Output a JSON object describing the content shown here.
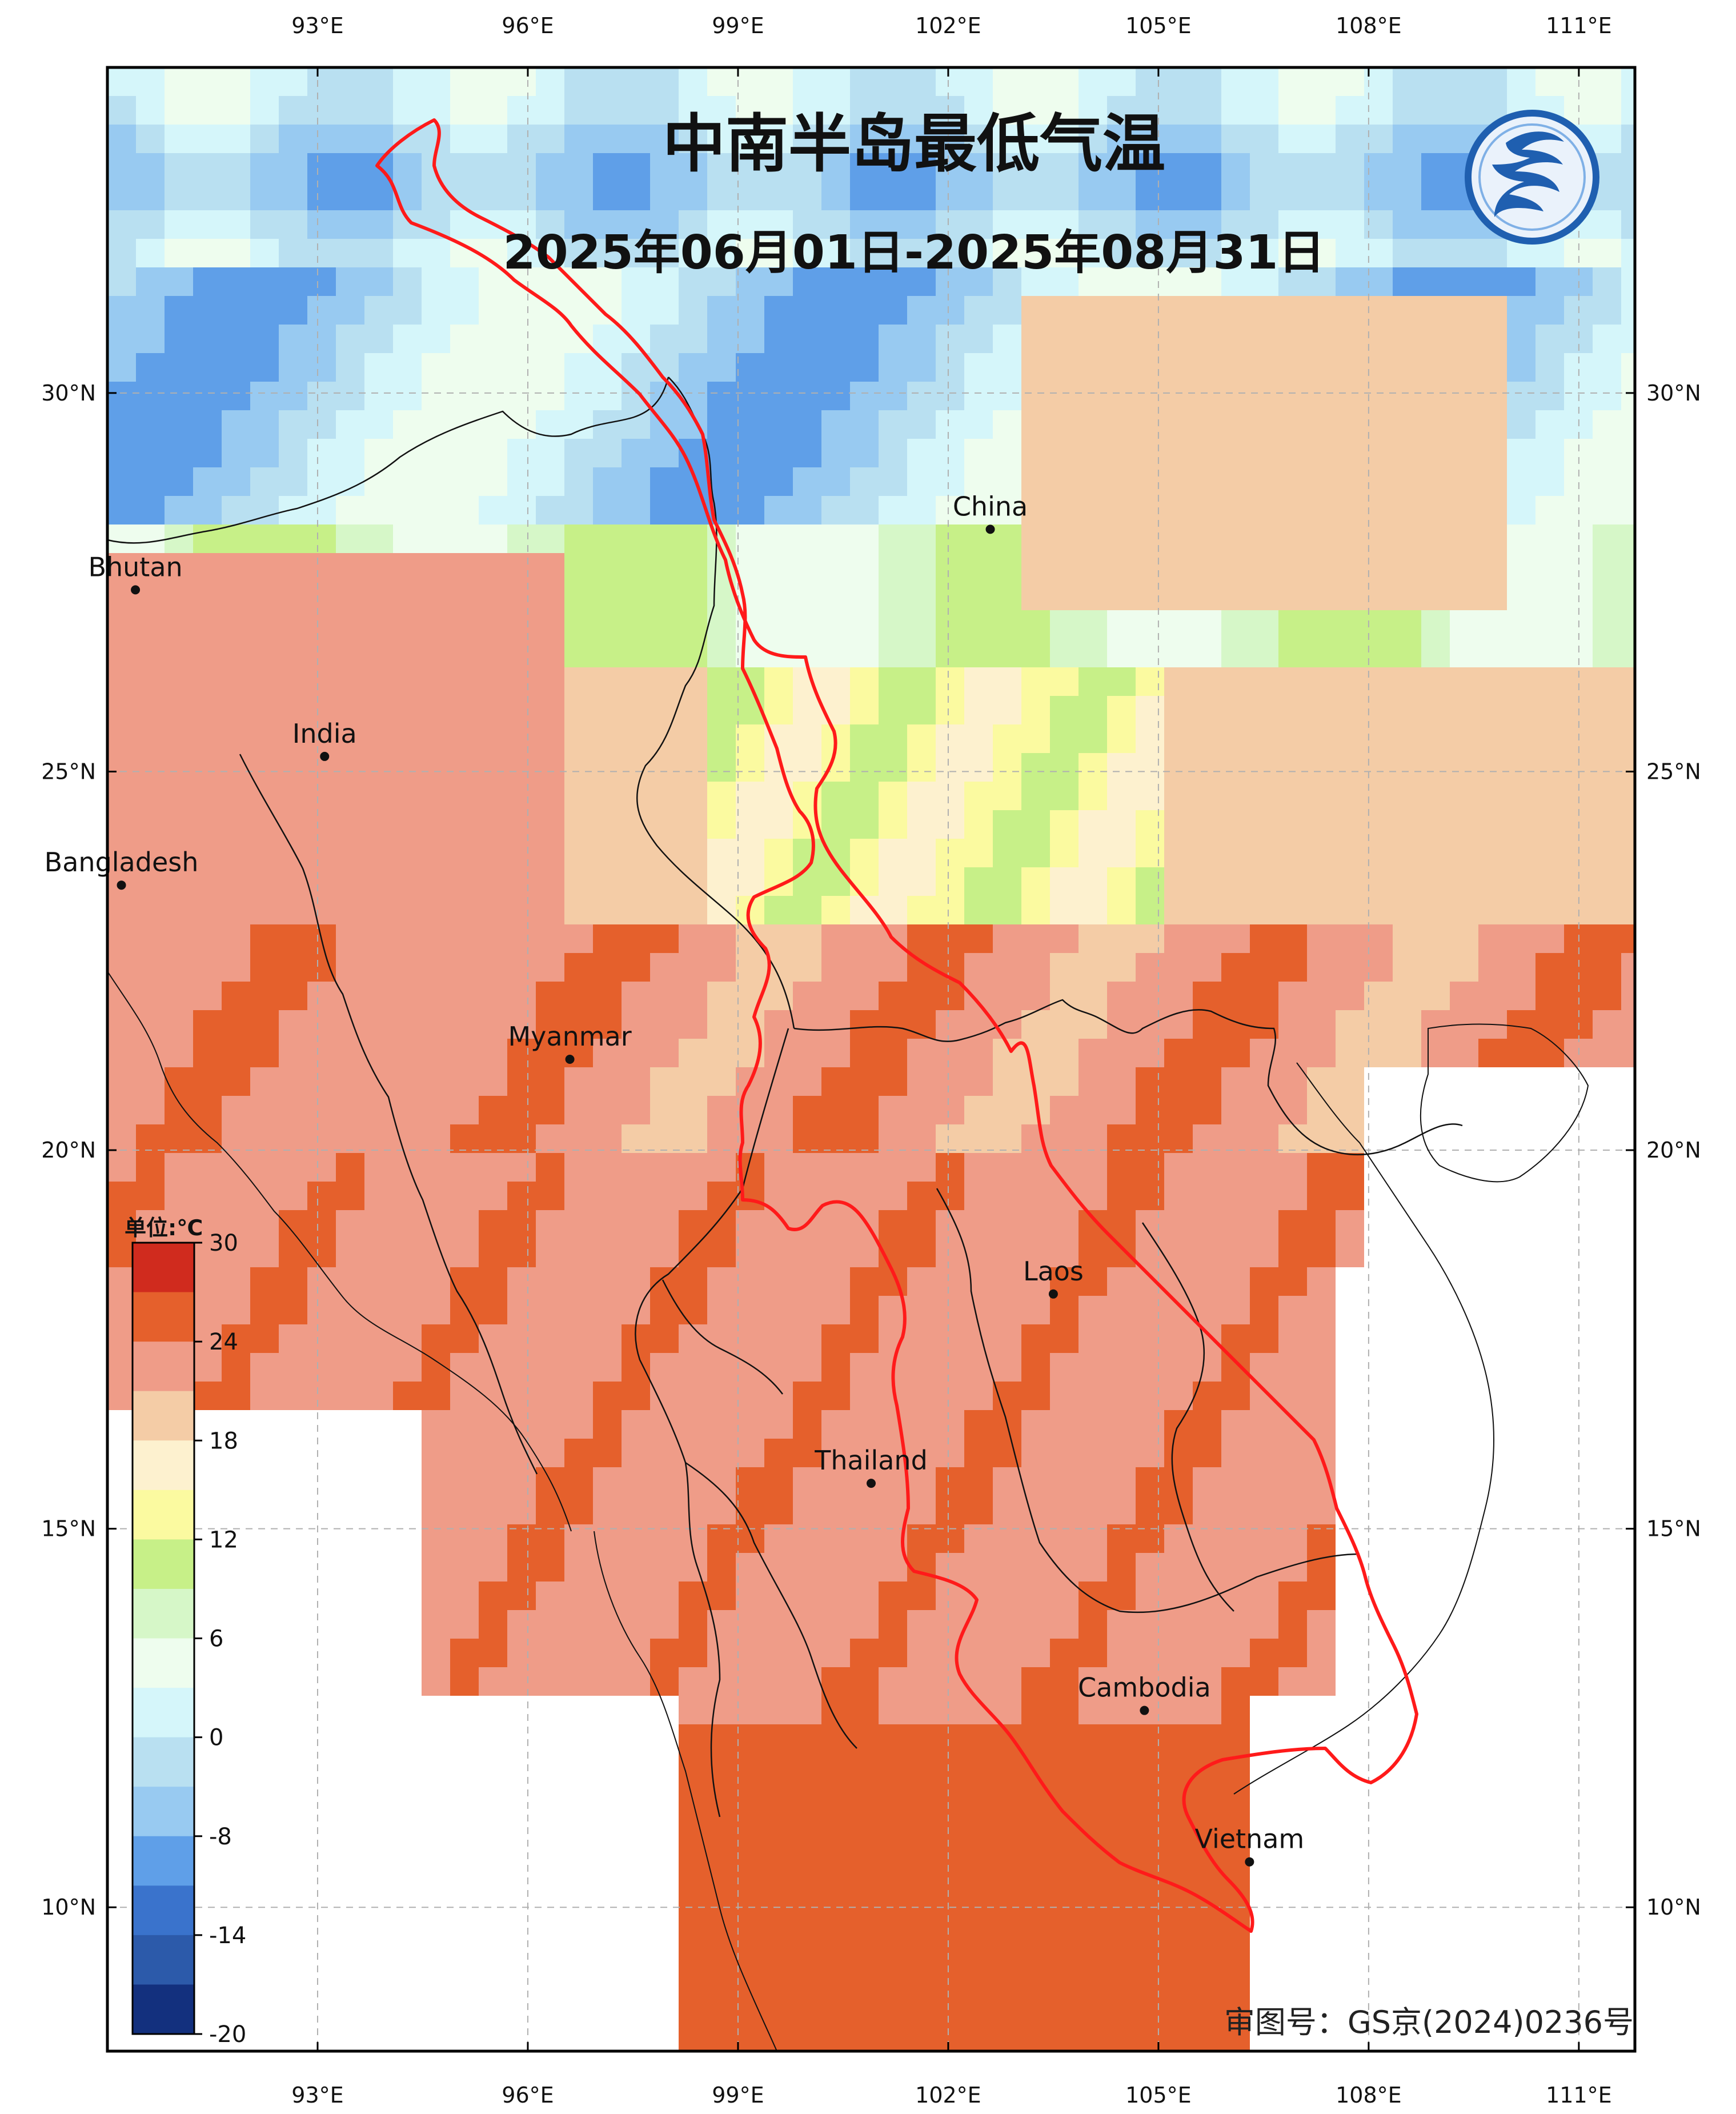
{
  "title": "中南半岛最低气温",
  "subtitle": "2025年06月01日-2025年08月31日",
  "approval_number": "审图号：GS京(2024)0236号",
  "logo": {
    "icon": "weather-service-dragon-logo",
    "color": "#1f5fb0"
  },
  "axes": {
    "lon_ticks": [
      "93°E",
      "96°E",
      "99°E",
      "102°E",
      "105°E",
      "108°E",
      "111°E"
    ],
    "lat_ticks": [
      "30°N",
      "25°N",
      "20°N",
      "15°N",
      "10°N"
    ]
  },
  "places": [
    {
      "name": "China",
      "lon": 102.6,
      "lat": 28.2
    },
    {
      "name": "Bhutan",
      "lon": 90.4,
      "lat": 27.4
    },
    {
      "name": "India",
      "lon": 93.1,
      "lat": 25.2
    },
    {
      "name": "Bangladesh",
      "lon": 90.2,
      "lat": 23.5
    },
    {
      "name": "Myanmar",
      "lon": 96.6,
      "lat": 21.2
    },
    {
      "name": "Laos",
      "lon": 103.5,
      "lat": 18.1
    },
    {
      "name": "Thailand",
      "lon": 100.9,
      "lat": 15.6
    },
    {
      "name": "Cambodia",
      "lon": 104.8,
      "lat": 12.6
    },
    {
      "name": "Vietnam",
      "lon": 106.3,
      "lat": 10.6
    }
  ],
  "colorbar": {
    "unit": "单位:℃",
    "labels": [
      "30",
      "24",
      "18",
      "12",
      "6",
      "0",
      "-8",
      "-14",
      "-20"
    ],
    "colors": [
      "#d02b1e",
      "#e5602c",
      "#ef9c88",
      "#f4cca6",
      "#fdf1cf",
      "#fbfaa0",
      "#c7f088",
      "#d6f7c8",
      "#eefdee",
      "#d5f6fa",
      "#b9e0f1",
      "#98caf1",
      "#5f9fe8",
      "#3a73cc",
      "#2c5aaa",
      "#13307e"
    ]
  },
  "legend_colors": {
    "basin_outline": "#ff1a1a",
    "border_lines": "#111111"
  }
}
